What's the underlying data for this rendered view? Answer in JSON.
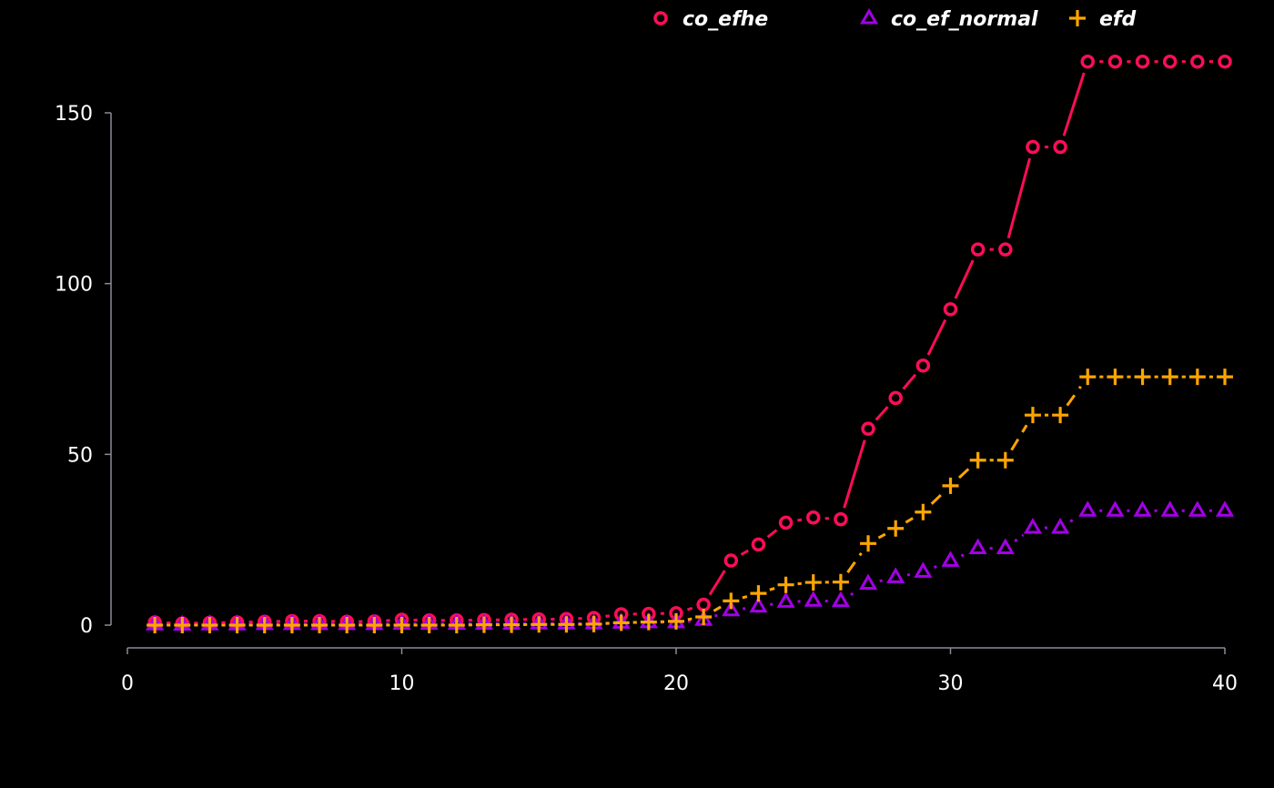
{
  "chart_data": {
    "type": "line",
    "title": "",
    "xlabel": "",
    "ylabel": "",
    "xlim": [
      0,
      40
    ],
    "ylim": [
      0,
      150
    ],
    "x_ticks": [
      0,
      10,
      20,
      30,
      40
    ],
    "y_ticks": [
      0,
      50,
      100,
      150
    ],
    "grid": false,
    "legend_position": "top",
    "background": "#000000",
    "axis_color": "#8a8a99",
    "x": [
      1,
      2,
      3,
      4,
      5,
      6,
      7,
      8,
      9,
      10,
      11,
      12,
      13,
      14,
      15,
      16,
      17,
      18,
      19,
      20,
      21,
      22,
      23,
      24,
      25,
      26,
      27,
      28,
      29,
      30,
      31,
      32,
      33,
      34,
      35,
      36,
      37,
      38,
      39,
      40
    ],
    "series": [
      {
        "name": "co_efhe",
        "color": "#ff0d57",
        "marker": "circle",
        "line": "solid",
        "values": [
          0.8,
          0.5,
          0.7,
          0.8,
          1.0,
          1.2,
          1.2,
          1.0,
          1.1,
          1.6,
          1.4,
          1.4,
          1.5,
          1.6,
          1.7,
          1.8,
          2.1,
          3.2,
          3.3,
          3.5,
          6.0,
          18.9,
          23.6,
          30.0,
          31.5,
          31.0,
          57.5,
          66.5,
          76.0,
          92.5,
          110.0,
          110.0,
          140.0,
          140.0,
          165.0,
          165.0,
          165.0,
          165.0,
          165.0,
          165.0
        ]
      },
      {
        "name": "co_ef_normal",
        "color": "#a300e6",
        "marker": "triangle",
        "line": "dotted",
        "values": [
          0.2,
          0.1,
          0.2,
          0.2,
          0.3,
          0.3,
          0.3,
          0.3,
          0.3,
          0.4,
          0.4,
          0.4,
          0.4,
          0.4,
          0.5,
          0.5,
          0.5,
          0.7,
          0.8,
          0.8,
          1.5,
          4.3,
          5.4,
          6.8,
          7.1,
          7.0,
          12.1,
          14.0,
          15.6,
          18.8,
          22.5,
          22.5,
          28.5,
          28.5,
          33.5,
          33.5,
          33.5,
          33.5,
          33.5,
          33.5
        ]
      },
      {
        "name": "efd",
        "color": "#ffa500",
        "marker": "plus",
        "line": "dashed",
        "values": [
          0.0,
          0.0,
          0.0,
          0.0,
          0.0,
          0.0,
          0.0,
          0.0,
          0.0,
          0.0,
          0.0,
          0.0,
          0.1,
          0.1,
          0.2,
          0.2,
          0.3,
          0.7,
          0.9,
          1.1,
          2.4,
          7.1,
          9.3,
          11.8,
          12.5,
          12.6,
          23.9,
          28.3,
          33.1,
          40.8,
          48.3,
          48.3,
          61.5,
          61.5,
          72.7,
          72.7,
          72.7,
          72.7,
          72.7,
          72.7
        ]
      }
    ]
  }
}
